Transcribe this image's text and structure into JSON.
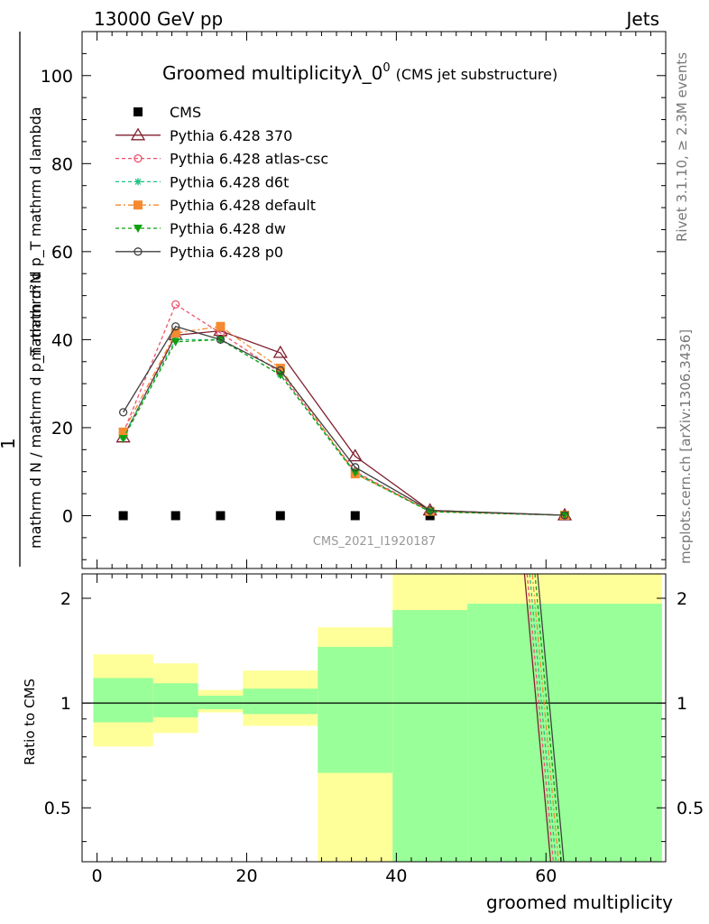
{
  "header": {
    "left": "13000 GeV pp",
    "right": "Jets"
  },
  "side_text": {
    "top": "Rivet 3.1.10, ≥ 2.3M events",
    "bottom": "mcplots.cern.ch [arXiv:1306.3436]"
  },
  "chart_data": [
    {
      "type": "line",
      "title": "Groomed multiplicityλ_0",
      "title_sup": "0",
      "subtitle": "(CMS jet substructure)",
      "watermark": "CMS_2021_I1920187",
      "ylabel_numerator": "mathrm d²N",
      "ylabel_denominator": "mathrm d N / mathrm d p_T mathrm d p_T mathrm d lambda",
      "ylabel_one": "1",
      "xlabel": "",
      "xlim": [
        -2,
        76
      ],
      "ylim": [
        -12,
        110
      ],
      "y_ticks": [
        0,
        20,
        40,
        60,
        80,
        100
      ],
      "legend_position": "top-left",
      "x": [
        3.5,
        10.5,
        16.5,
        24.5,
        34.5,
        44.5,
        62.5
      ],
      "series": [
        {
          "name": "CMS",
          "color": "#000000",
          "marker": "square-filled",
          "dash": "none",
          "values": [
            0,
            0,
            0,
            0,
            0,
            0,
            0
          ]
        },
        {
          "name": "Pythia 6.428 370",
          "color": "#7f1f2f",
          "marker": "triangle-open",
          "dash": "solid",
          "values": [
            17.8,
            41.0,
            42.0,
            37.0,
            13.5,
            1.2,
            0.1
          ]
        },
        {
          "name": "Pythia 6.428 atlas-csc",
          "color": "#f0506e",
          "marker": "circle-open",
          "dash": "dashed",
          "values": [
            18.8,
            48.0,
            41.5,
            32.5,
            10.0,
            1.0,
            0.1
          ]
        },
        {
          "name": "Pythia 6.428 d6t",
          "color": "#20c080",
          "marker": "star",
          "dash": "dashed",
          "values": [
            18.0,
            40.0,
            40.0,
            32.0,
            9.5,
            0.9,
            0.1
          ]
        },
        {
          "name": "Pythia 6.428 default",
          "color": "#f58a30",
          "marker": "square-filled",
          "dash": "dashdot",
          "values": [
            19.0,
            41.5,
            43.0,
            33.5,
            9.5,
            1.0,
            0.1
          ]
        },
        {
          "name": "Pythia 6.428 dw",
          "color": "#10a010",
          "marker": "triangle-down-filled",
          "dash": "dashed",
          "values": [
            17.5,
            39.5,
            40.0,
            32.0,
            9.8,
            0.9,
            0.1
          ]
        },
        {
          "name": "Pythia 6.428 p0",
          "color": "#404040",
          "marker": "circle-open",
          "dash": "solid",
          "values": [
            23.5,
            43.0,
            40.0,
            33.0,
            11.0,
            1.2,
            0.1
          ]
        }
      ]
    },
    {
      "type": "area",
      "title": "",
      "xlabel": "groomed multiplicity",
      "ylabel": "Ratio to CMS",
      "xlim": [
        -2,
        76
      ],
      "ylim": [
        0.35,
        2.35
      ],
      "log_y": true,
      "y_ticks": [
        0.5,
        1,
        2
      ],
      "x_ticks": [
        0,
        20,
        40,
        60
      ],
      "reference_line": 1,
      "bins": [
        {
          "x0": -0.5,
          "x1": 7.5,
          "outer": [
            0.75,
            1.38
          ],
          "inner": [
            0.88,
            1.18
          ]
        },
        {
          "x0": 7.5,
          "x1": 13.5,
          "outer": [
            0.82,
            1.3
          ],
          "inner": [
            0.91,
            1.14
          ]
        },
        {
          "x0": 13.5,
          "x1": 19.5,
          "outer": [
            0.94,
            1.09
          ],
          "inner": [
            0.96,
            1.05
          ]
        },
        {
          "x0": 19.5,
          "x1": 29.5,
          "outer": [
            0.86,
            1.24
          ],
          "inner": [
            0.93,
            1.1
          ]
        },
        {
          "x0": 29.5,
          "x1": 39.5,
          "outer": [
            0.35,
            1.65
          ],
          "inner": [
            0.63,
            1.45
          ]
        },
        {
          "x0": 39.5,
          "x1": 49.5,
          "outer": [
            0.35,
            2.35
          ],
          "inner": [
            0.35,
            1.85
          ]
        },
        {
          "x0": 49.5,
          "x1": 75.5,
          "outer": [
            0.35,
            2.35
          ],
          "inner": [
            0.35,
            1.93
          ]
        }
      ],
      "band_colors": {
        "outer": "#ffff99",
        "inner": "#99ff99"
      },
      "steep_line": {
        "x": [
          58.0,
          61.5
        ],
        "y": [
          2.35,
          0.35
        ]
      }
    }
  ]
}
